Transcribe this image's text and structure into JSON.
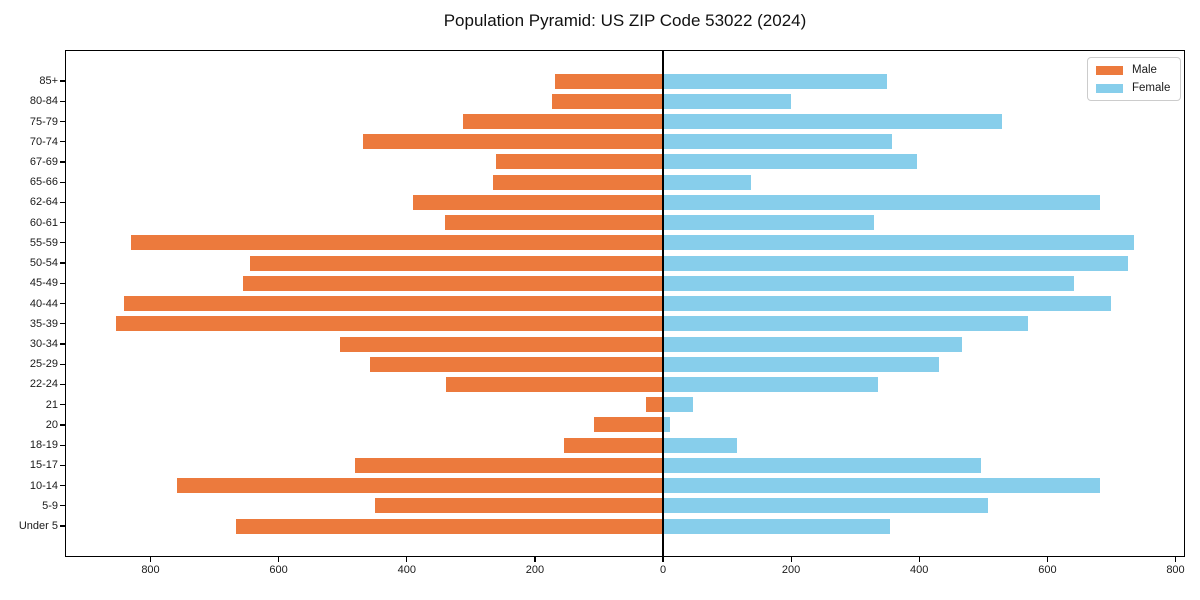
{
  "chart_data": {
    "type": "bar",
    "orientation": "horizontal-pyramid",
    "title": "Population Pyramid: US ZIP Code 53022 (2024)",
    "categories_top_to_bottom": [
      "85+",
      "80-84",
      "75-79",
      "70-74",
      "67-69",
      "65-66",
      "62-64",
      "60-61",
      "55-59",
      "50-54",
      "45-49",
      "40-44",
      "35-39",
      "30-34",
      "25-29",
      "22-24",
      "21",
      "20",
      "18-19",
      "15-17",
      "10-14",
      "5-9",
      "Under 5"
    ],
    "series": [
      {
        "name": "Male",
        "side": "left",
        "color": "#ec7a3d",
        "values": [
          168,
          173,
          312,
          469,
          260,
          266,
          390,
          341,
          831,
          645,
          655,
          841,
          854,
          505,
          458,
          339,
          26,
          108,
          155,
          481,
          759,
          449,
          666
        ]
      },
      {
        "name": "Female",
        "side": "right",
        "color": "#87ceeb",
        "values": [
          350,
          200,
          529,
          357,
          396,
          137,
          682,
          330,
          735,
          726,
          642,
          700,
          570,
          466,
          431,
          336,
          47,
          11,
          116,
          496,
          682,
          508,
          355
        ]
      }
    ],
    "x_axis": {
      "tick_labels": [
        "800",
        "600",
        "400",
        "200",
        "0",
        "200",
        "400",
        "600",
        "800"
      ],
      "tick_values": [
        -800,
        -600,
        -400,
        -200,
        0,
        200,
        400,
        600,
        800
      ],
      "xlim": [
        -933,
        815
      ],
      "note": "tick labels show absolute values on both sides of zero"
    },
    "y_axis": {
      "label": ""
    },
    "legend": {
      "position": "upper-right",
      "entries": [
        "Male",
        "Female"
      ]
    },
    "grid": false,
    "zero_line": true
  }
}
